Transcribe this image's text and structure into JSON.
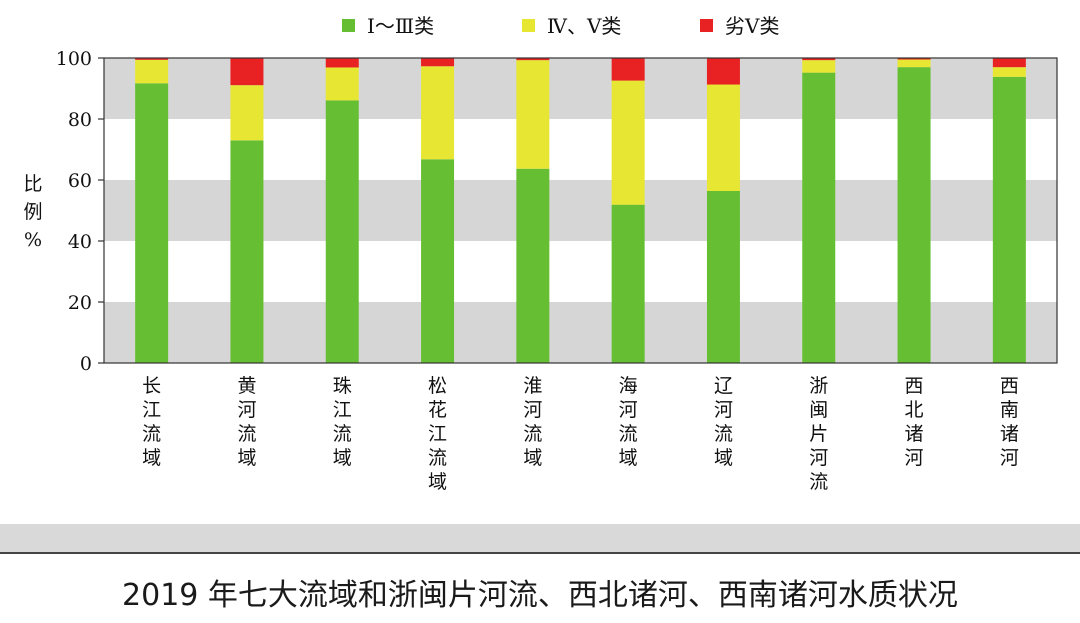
{
  "chart_data": {
    "type": "bar",
    "stacked": true,
    "title": "",
    "xlabel": "",
    "ylabel": "比例%",
    "ylim": [
      0,
      100
    ],
    "yticks": [
      0,
      20,
      40,
      60,
      80,
      100
    ],
    "grid": "alternating horizontal bands",
    "legend_position": "top-center",
    "categories": [
      "长江流域",
      "黄河流域",
      "珠江流域",
      "松花江流域",
      "淮河流域",
      "海河流域",
      "辽河流域",
      "浙闽片河流",
      "西北诸河",
      "西南诸河"
    ],
    "series": [
      {
        "name": "Ⅰ～Ⅲ类",
        "color": "#66bf33",
        "values": [
          91.7,
          73.0,
          86.1,
          66.8,
          63.7,
          51.9,
          56.4,
          95.2,
          97.0,
          93.8
        ]
      },
      {
        "name": "Ⅳ、Ⅴ类",
        "color": "#e6e633",
        "values": [
          7.7,
          18.1,
          10.8,
          30.5,
          35.6,
          40.7,
          34.9,
          4.1,
          2.5,
          3.2
        ]
      },
      {
        "name": "劣Ⅴ类",
        "color": "#e82222",
        "values": [
          0.6,
          8.9,
          3.1,
          2.7,
          0.7,
          7.4,
          8.7,
          0.7,
          0.5,
          3.0
        ]
      }
    ]
  },
  "ylabel_chars": [
    "比",
    "例",
    "%"
  ],
  "caption": "2019 年七大流域和浙闽片河流、西北诸河、西南诸河水质状况"
}
